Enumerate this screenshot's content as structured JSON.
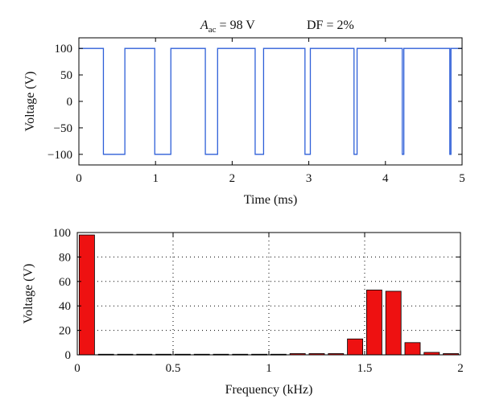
{
  "figure": {
    "annotations": {
      "amplitude_symbol": "A",
      "amplitude_subscript": "ac",
      "amplitude_value": " = 98 V",
      "duty_factor": "DF = 2%"
    }
  },
  "chart_data": [
    {
      "type": "line",
      "xlabel": "Time (ms)",
      "ylabel": "Voltage (V)",
      "xlim": [
        0,
        5
      ],
      "ylim": [
        -120,
        120
      ],
      "xticks": [
        0,
        1,
        2,
        3,
        4,
        5
      ],
      "xtick_labels": [
        "0",
        "1",
        "2",
        "3",
        "4",
        "5"
      ],
      "yticks": [
        -100,
        -50,
        0,
        50,
        100
      ],
      "ytick_labels": [
        "−100",
        "−50",
        "0",
        "50",
        "100"
      ],
      "grid": false,
      "color": "#2e5fd8",
      "series": [
        {
          "x": [
            0,
            0.32,
            0.32,
            0.6,
            0.6,
            0.99,
            0.99,
            1.2,
            1.2,
            1.65,
            1.65,
            1.81,
            1.81,
            2.3,
            2.3,
            2.41,
            2.41,
            2.95,
            2.95,
            3.02,
            3.02,
            3.59,
            3.59,
            3.63,
            3.63,
            4.22,
            4.22,
            4.24,
            4.24,
            4.84,
            4.84,
            4.855,
            4.855,
            5
          ],
          "y": [
            100,
            100,
            -100,
            -100,
            100,
            100,
            -100,
            -100,
            100,
            100,
            -100,
            -100,
            100,
            100,
            -100,
            -100,
            100,
            100,
            -100,
            -100,
            100,
            100,
            -100,
            -100,
            100,
            100,
            -100,
            -100,
            100,
            100,
            -100,
            -100,
            100,
            100
          ]
        }
      ]
    },
    {
      "type": "bar",
      "xlabel": "Frequency (kHz)",
      "ylabel": "Voltage (V)",
      "xlim": [
        0,
        2
      ],
      "ylim": [
        0,
        100
      ],
      "xticks": [
        0,
        0.5,
        1,
        1.5,
        2
      ],
      "xtick_labels": [
        "0",
        "0.5",
        "1",
        "1.5",
        "2"
      ],
      "yticks": [
        0,
        20,
        40,
        60,
        80,
        100
      ],
      "ytick_labels": [
        "0",
        "20",
        "40",
        "60",
        "80",
        "100"
      ],
      "grid": true,
      "color": "#ee1111",
      "bar_width": 0.08,
      "x": [
        0.05,
        0.15,
        0.25,
        0.35,
        0.45,
        0.55,
        0.65,
        0.75,
        0.85,
        0.95,
        1.05,
        1.15,
        1.25,
        1.35,
        1.45,
        1.55,
        1.65,
        1.75,
        1.85,
        1.95
      ],
      "values": [
        98,
        0.5,
        0.5,
        0.5,
        0.5,
        0.5,
        0.5,
        0.5,
        0.5,
        0.5,
        0.5,
        1,
        1,
        1,
        13,
        53,
        52,
        10,
        2,
        1
      ]
    }
  ]
}
